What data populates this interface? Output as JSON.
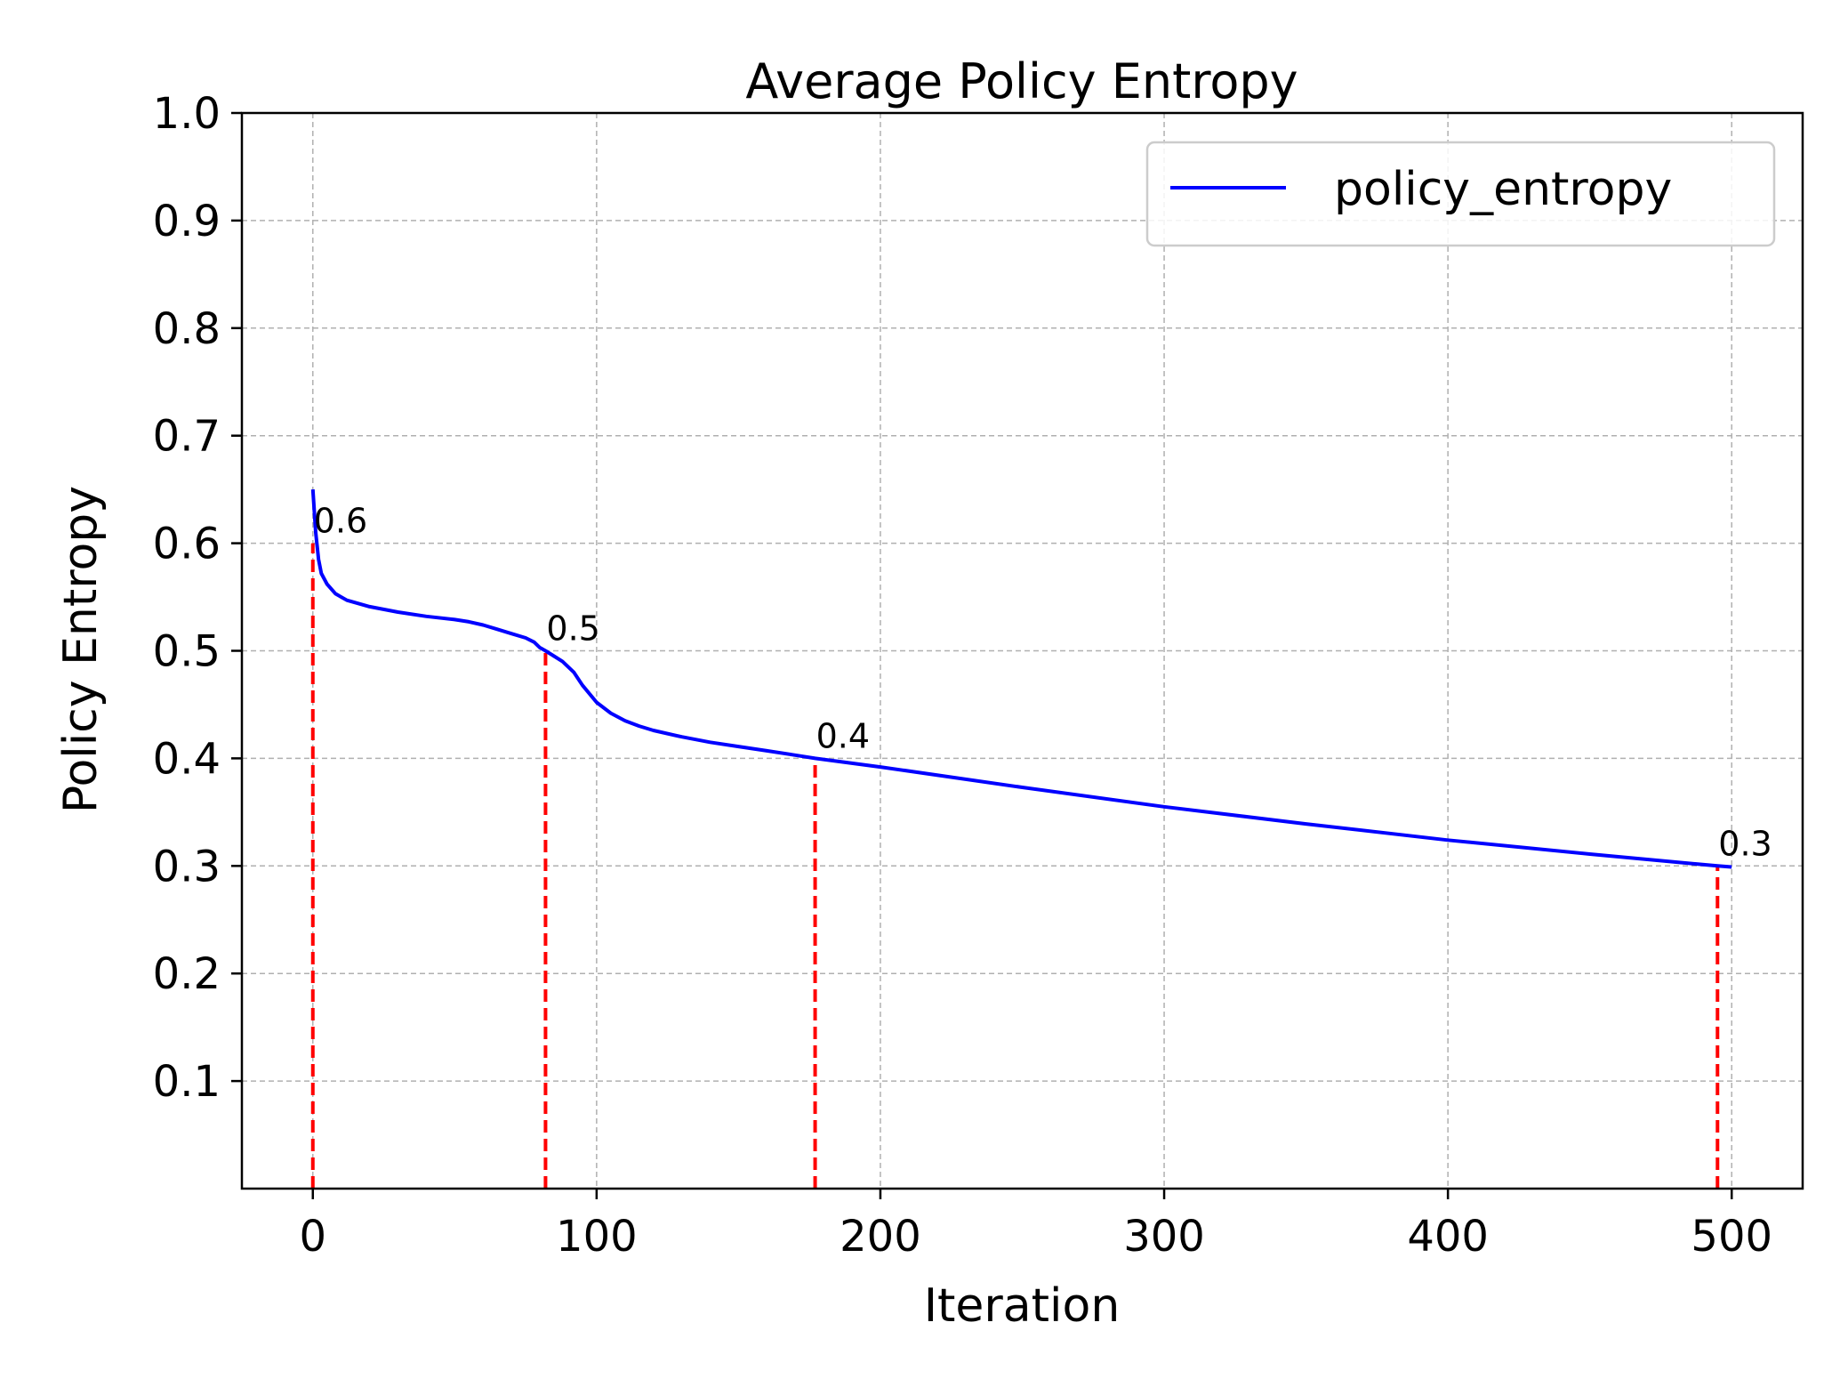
{
  "chart_data": {
    "type": "line",
    "title": "Average Policy Entropy",
    "xlabel": "Iteration",
    "ylabel": "Policy Entropy",
    "xlim": [
      -25,
      525
    ],
    "ylim": [
      0.0,
      1.0
    ],
    "x_ticks": [
      0,
      100,
      200,
      300,
      400,
      500
    ],
    "x_tick_labels": [
      "0",
      "100",
      "200",
      "300",
      "400",
      "500"
    ],
    "y_ticks": [
      0.1,
      0.2,
      0.3,
      0.4,
      0.5,
      0.6,
      0.7,
      0.8,
      0.9,
      1.0
    ],
    "y_tick_labels": [
      "0.1",
      "0.2",
      "0.3",
      "0.4",
      "0.5",
      "0.6",
      "0.7",
      "0.8",
      "0.9",
      "1.0"
    ],
    "grid": true,
    "legend_position": "top-right",
    "series": [
      {
        "name": "policy_entropy",
        "color": "#0000ff",
        "x": [
          0,
          1,
          2,
          3,
          5,
          8,
          12,
          20,
          30,
          40,
          50,
          55,
          60,
          65,
          70,
          75,
          78,
          80,
          82,
          85,
          88,
          92,
          95,
          100,
          105,
          110,
          115,
          120,
          130,
          140,
          150,
          160,
          170,
          177,
          200,
          250,
          300,
          350,
          400,
          450,
          495,
          500
        ],
        "y": [
          0.65,
          0.61,
          0.585,
          0.572,
          0.562,
          0.553,
          0.547,
          0.541,
          0.536,
          0.532,
          0.529,
          0.527,
          0.524,
          0.52,
          0.516,
          0.512,
          0.508,
          0.503,
          0.5,
          0.495,
          0.49,
          0.48,
          0.468,
          0.452,
          0.442,
          0.435,
          0.43,
          0.426,
          0.42,
          0.415,
          0.411,
          0.407,
          0.403,
          0.4,
          0.392,
          0.373,
          0.355,
          0.339,
          0.324,
          0.311,
          0.3,
          0.299
        ]
      }
    ],
    "annotations": [
      {
        "x": 0,
        "y": 0.6,
        "label": "0.6"
      },
      {
        "x": 82,
        "y": 0.5,
        "label": "0.5"
      },
      {
        "x": 177,
        "y": 0.4,
        "label": "0.4"
      },
      {
        "x": 495,
        "y": 0.3,
        "label": "0.3"
      }
    ],
    "annotation_color": "#ff0000"
  }
}
